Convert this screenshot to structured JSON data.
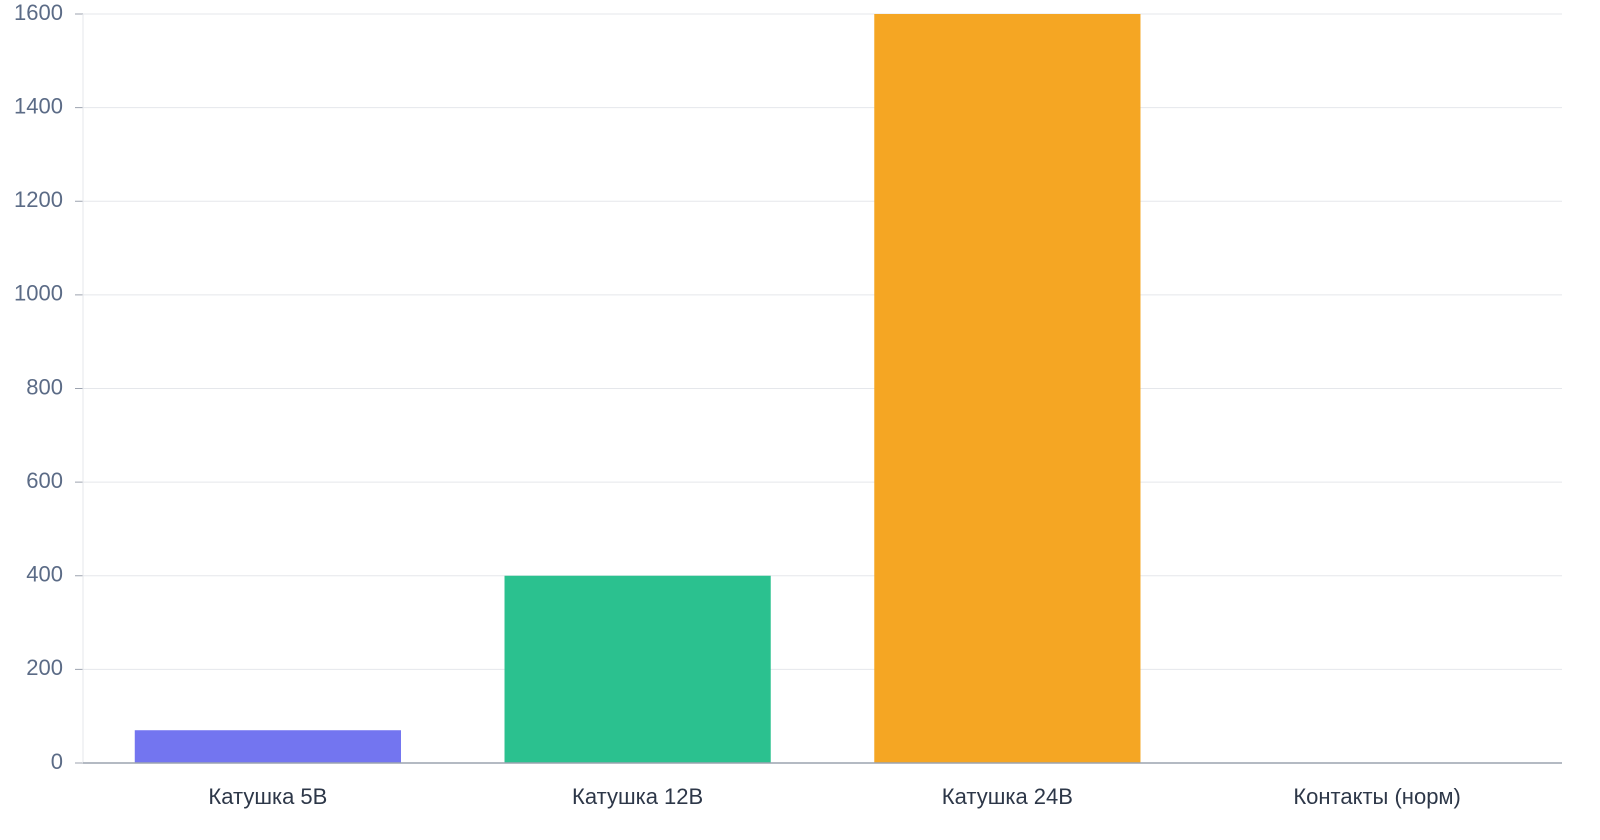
{
  "chart_data": {
    "type": "bar",
    "categories": [
      "Катушка 5В",
      "Катушка 12В",
      "Катушка 24В",
      "Контакты (норм)"
    ],
    "values": [
      70,
      400,
      1600,
      0
    ],
    "colors": [
      "#7375f0",
      "#2bc18f",
      "#f5a623",
      "#ef4444"
    ],
    "ylim": [
      0,
      1600
    ],
    "yticks": [
      0,
      200,
      400,
      600,
      800,
      1000,
      1200,
      1400,
      1600
    ],
    "grid": true
  }
}
